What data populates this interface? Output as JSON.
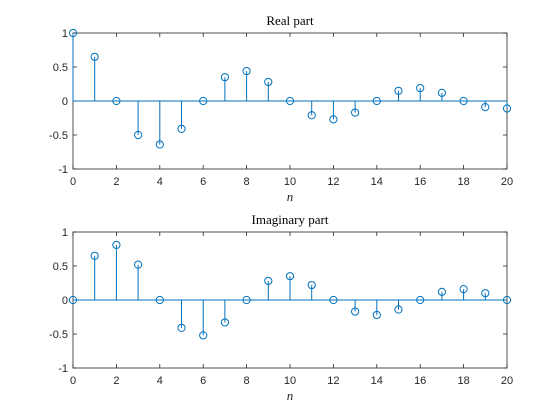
{
  "colors": {
    "stem": "#0072BD",
    "axes": "#262626",
    "background": "#ffffff"
  },
  "chart_data": [
    {
      "type": "stem",
      "title": "Real part",
      "xlabel": "n",
      "ylabel": "",
      "xlim": [
        0,
        20
      ],
      "ylim": [
        -1,
        1
      ],
      "xticks": [
        0,
        2,
        4,
        6,
        8,
        10,
        12,
        14,
        16,
        18,
        20
      ],
      "xtick_labels": [
        "0",
        "2",
        "4",
        "6",
        "8",
        "10",
        "12",
        "14",
        "16",
        "18",
        "20"
      ],
      "yticks": [
        -1,
        -0.5,
        0,
        0.5,
        1
      ],
      "ytick_labels": [
        "-1",
        "-0.5",
        "0",
        "0.5",
        "1"
      ],
      "grid": false,
      "x": [
        0,
        1,
        2,
        3,
        4,
        5,
        6,
        7,
        8,
        9,
        10,
        11,
        12,
        13,
        14,
        15,
        16,
        17,
        18,
        19,
        20
      ],
      "y": [
        1,
        0.65,
        0,
        -0.5,
        -0.64,
        -0.41,
        0,
        0.35,
        0.44,
        0.28,
        0,
        -0.21,
        -0.27,
        -0.17,
        0,
        0.15,
        0.19,
        0.12,
        0,
        -0.09,
        -0.11
      ]
    },
    {
      "type": "stem",
      "title": "Imaginary part",
      "xlabel": "n",
      "ylabel": "",
      "xlim": [
        0,
        20
      ],
      "ylim": [
        -1,
        1
      ],
      "xticks": [
        0,
        2,
        4,
        6,
        8,
        10,
        12,
        14,
        16,
        18,
        20
      ],
      "xtick_labels": [
        "0",
        "2",
        "4",
        "6",
        "8",
        "10",
        "12",
        "14",
        "16",
        "18",
        "20"
      ],
      "yticks": [
        -1,
        -0.5,
        0,
        0.5,
        1
      ],
      "ytick_labels": [
        "-1",
        "-0.5",
        "0",
        "0.5",
        "1"
      ],
      "grid": false,
      "x": [
        0,
        1,
        2,
        3,
        4,
        5,
        6,
        7,
        8,
        9,
        10,
        11,
        12,
        13,
        14,
        15,
        16,
        17,
        18,
        19,
        20
      ],
      "y": [
        0,
        0.65,
        0.81,
        0.52,
        0,
        -0.41,
        -0.52,
        -0.33,
        0,
        0.28,
        0.35,
        0.22,
        0,
        -0.17,
        -0.22,
        -0.14,
        0,
        0.12,
        0.16,
        0.1,
        0
      ]
    }
  ]
}
